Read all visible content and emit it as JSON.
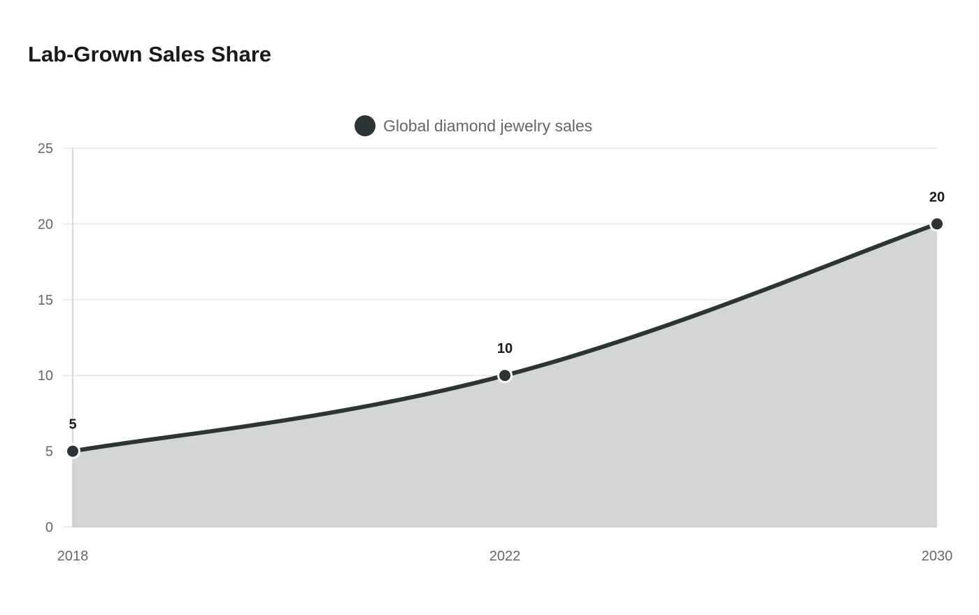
{
  "title": "Lab-Grown Sales Share",
  "colors": {
    "series": "#2d3436",
    "fill": "#d4d6d5",
    "grid": "#e6e6e6",
    "axis": "#cccccc"
  },
  "chart_data": {
    "type": "area",
    "title": "Lab-Grown Sales Share",
    "x": [
      "2018",
      "2022",
      "2030"
    ],
    "series": [
      {
        "name": "Global diamond jewelry sales",
        "values": [
          5,
          10,
          20
        ]
      }
    ],
    "ylim": [
      0,
      25
    ],
    "yticks": [
      0,
      5,
      10,
      15,
      20,
      25
    ],
    "data_labels": [
      "5",
      "10",
      "20"
    ],
    "grid": true,
    "legend": "top-center",
    "smooth": true
  }
}
